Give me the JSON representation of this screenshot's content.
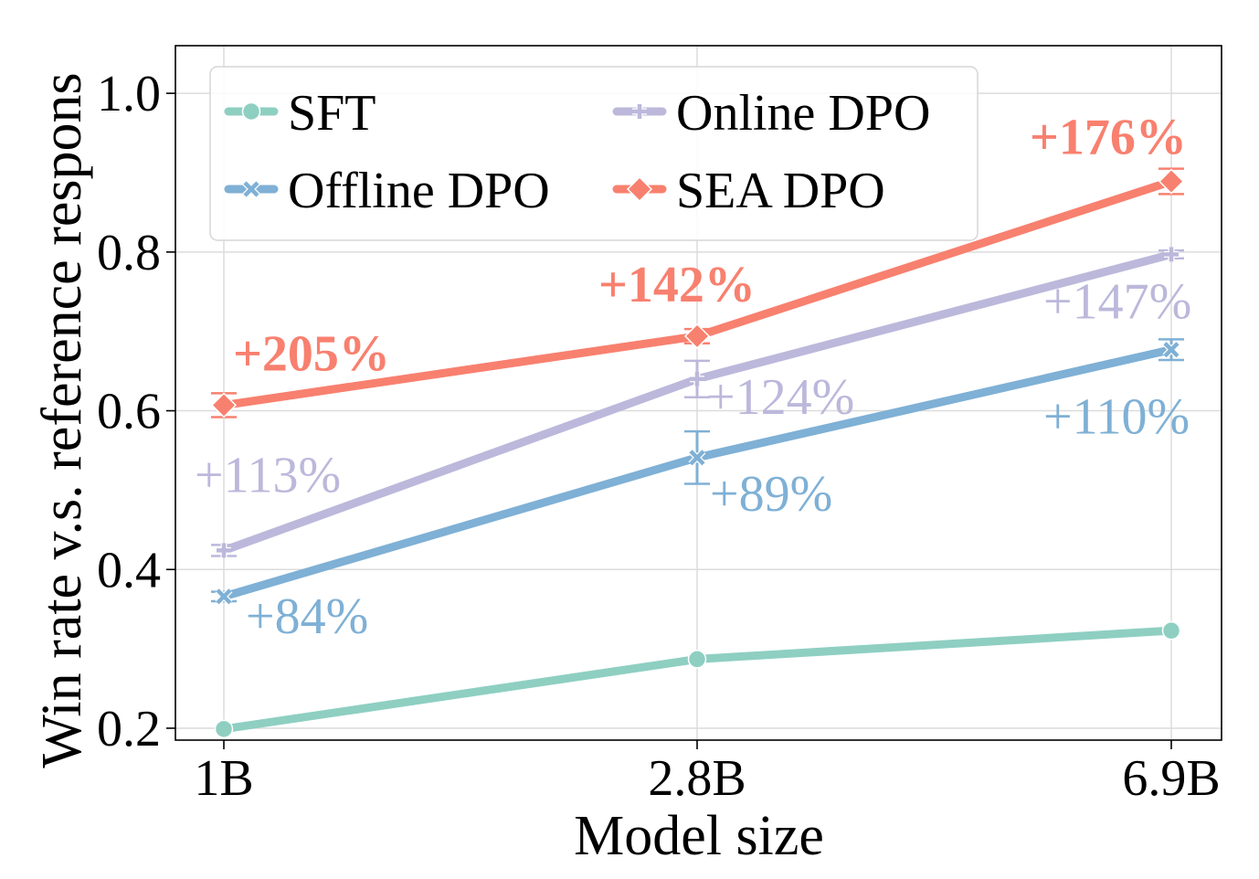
{
  "chart_data": {
    "type": "line",
    "xlabel": "Model size",
    "ylabel": "Win rate v.s. reference respons",
    "categories": [
      "1B",
      "2.8B",
      "6.9B"
    ],
    "ylim": [
      0.185,
      1.06
    ],
    "yticks": [
      0.2,
      0.4,
      0.6,
      0.8,
      1.0
    ],
    "ytick_labels": [
      "0.2",
      "0.4",
      "0.6",
      "0.8",
      "1.0"
    ],
    "grid": true,
    "legend_position": "upper-left",
    "series": [
      {
        "name": "SFT",
        "color": "#8ecfc2",
        "marker": "circle",
        "values": [
          0.199,
          0.287,
          0.323
        ],
        "errors": [
          0,
          0,
          0
        ],
        "annotations": [
          "",
          "",
          ""
        ]
      },
      {
        "name": "Offline DPO",
        "color": "#7fb0d5",
        "marker": "x",
        "values": [
          0.366,
          0.541,
          0.677
        ],
        "errors": [
          0.006,
          0.033,
          0.013
        ],
        "annotations": [
          "+84%",
          "+89%",
          "+110%"
        ]
      },
      {
        "name": "Online DPO",
        "color": "#bcb8db",
        "marker": "plus",
        "values": [
          0.424,
          0.64,
          0.797
        ],
        "errors": [
          0.007,
          0.023,
          0.005
        ],
        "annotations": [
          "+113%",
          "+124%",
          "+147%"
        ]
      },
      {
        "name": "SEA DPO",
        "color": "#f8806f",
        "marker": "diamond",
        "values": [
          0.607,
          0.694,
          0.889
        ],
        "errors": [
          0.015,
          0.009,
          0.016
        ],
        "annotations": [
          "+205%",
          "+142%",
          "+176%"
        ]
      }
    ]
  }
}
